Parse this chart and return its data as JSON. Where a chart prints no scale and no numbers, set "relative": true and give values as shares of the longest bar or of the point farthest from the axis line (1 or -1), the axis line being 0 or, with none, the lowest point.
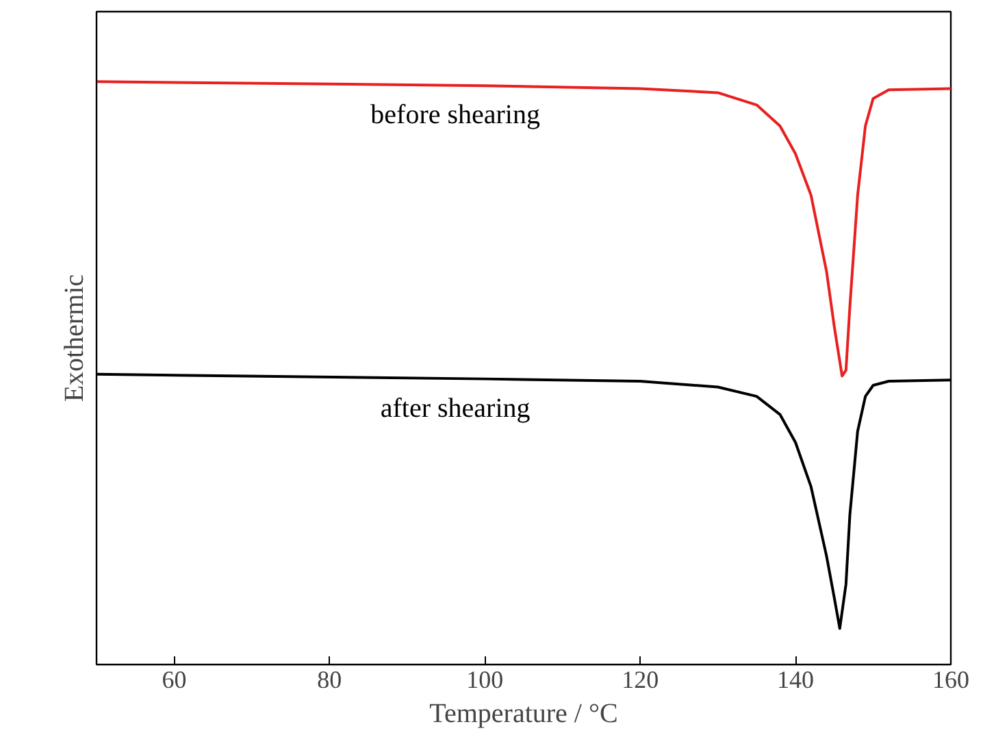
{
  "chart_data": {
    "type": "line",
    "relative": true,
    "xlabel": "Temperature / °C",
    "ylabel": "Exothermic",
    "xlim": [
      50,
      160
    ],
    "xticks": [
      60,
      80,
      100,
      120,
      140,
      160
    ],
    "tick_labels": "x",
    "legend": false,
    "grid": false,
    "marker": "none",
    "line_style": "solid",
    "series": [
      {
        "name": "before shearing",
        "color": "#e8201f",
        "x": [
          50,
          100,
          120,
          130,
          135,
          138,
          140,
          142,
          144,
          145,
          146,
          146.5,
          147,
          148,
          149,
          150,
          152,
          160
        ],
        "values": [
          1.0,
          0.993,
          0.988,
          0.981,
          0.96,
          0.924,
          0.876,
          0.805,
          0.674,
          0.579,
          0.495,
          0.505,
          0.614,
          0.805,
          0.924,
          0.971,
          0.986,
          0.988
        ]
      },
      {
        "name": "after shearing",
        "color": "#000000",
        "x": [
          50,
          100,
          120,
          130,
          135,
          138,
          140,
          142,
          144,
          145,
          145.7,
          146.5,
          147,
          148,
          149,
          150,
          152,
          160
        ],
        "values": [
          0.498,
          0.49,
          0.486,
          0.476,
          0.46,
          0.429,
          0.381,
          0.305,
          0.186,
          0.114,
          0.062,
          0.138,
          0.257,
          0.4,
          0.46,
          0.479,
          0.486,
          0.488
        ]
      }
    ]
  }
}
